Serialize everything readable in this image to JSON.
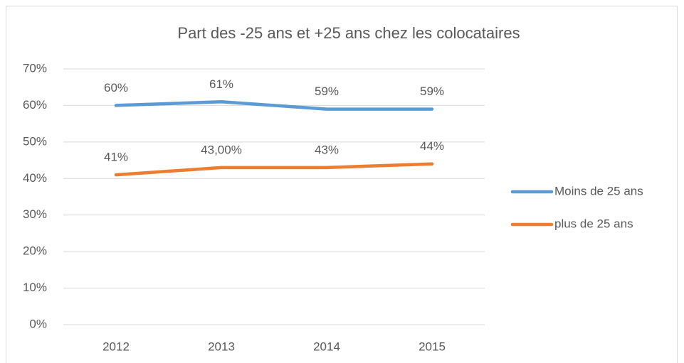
{
  "chart_data": {
    "type": "line",
    "title": "Part des -25 ans et +25 ans chez les colocataires",
    "categories": [
      "2012",
      "2013",
      "2014",
      "2015"
    ],
    "series": [
      {
        "name": "Moins de 25 ans",
        "color": "#5b9bd5",
        "values": [
          60,
          61,
          59,
          59
        ],
        "value_labels": [
          "60%",
          "61%",
          "59%",
          "59%"
        ]
      },
      {
        "name": "plus de 25 ans",
        "color": "#ed7d31",
        "values": [
          41,
          43,
          43,
          44
        ],
        "value_labels": [
          "41%",
          "43,00%",
          "43%",
          "44%"
        ]
      }
    ],
    "ylim": [
      0,
      70
    ],
    "yticks": [
      {
        "value": 0,
        "label": "0%"
      },
      {
        "value": 10,
        "label": "10%"
      },
      {
        "value": 20,
        "label": "20%"
      },
      {
        "value": 30,
        "label": "30%"
      },
      {
        "value": 40,
        "label": "40%"
      },
      {
        "value": 50,
        "label": "50%"
      },
      {
        "value": 60,
        "label": "60%"
      },
      {
        "value": 70,
        "label": "70%"
      }
    ],
    "grid": true,
    "legend": "right"
  }
}
